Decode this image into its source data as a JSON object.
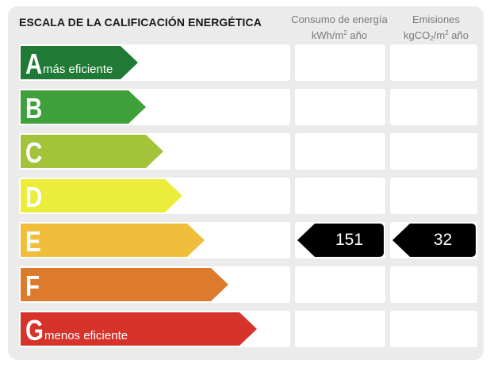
{
  "header": {
    "title": "ESCALA DE LA CALIFICACIÓN ENERGÉTICA",
    "consumo_line1": "Consumo de energía",
    "consumo_unit_a": "kWh/m",
    "consumo_unit_sup": "2",
    "consumo_unit_b": " año",
    "emisiones_line1": "Emisiones",
    "emisiones_unit_a": "kgCO",
    "emisiones_unit_sub": "2",
    "emisiones_unit_b": "/m",
    "emisiones_unit_sup": "2",
    "emisiones_unit_c": " año"
  },
  "rating": {
    "class": "E",
    "consumo": "151",
    "emisiones": "32"
  },
  "rows": [
    {
      "letter": "A",
      "label": "más eficiente",
      "color": "#1e7a35"
    },
    {
      "letter": "B",
      "label": "",
      "color": "#3ea13b"
    },
    {
      "letter": "C",
      "label": "",
      "color": "#a3c43a"
    },
    {
      "letter": "D",
      "label": "",
      "color": "#ecec3a"
    },
    {
      "letter": "E",
      "label": "",
      "color": "#f0be3a"
    },
    {
      "letter": "F",
      "label": "",
      "color": "#dd7a2c"
    },
    {
      "letter": "G",
      "label": "menos eficiente",
      "color": "#d6332a"
    }
  ]
}
